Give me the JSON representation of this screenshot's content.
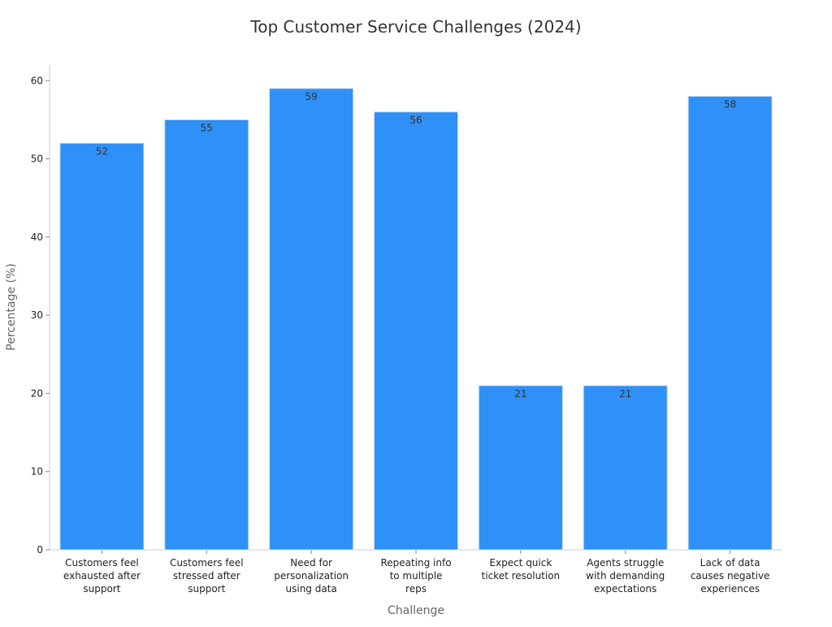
{
  "chart_data": {
    "type": "bar",
    "title": "Top Customer Service Challenges (2024)",
    "xlabel": "Challenge",
    "ylabel": "Percentage (%)",
    "categories": [
      "Customers feel exhausted after support",
      "Customers feel stressed after support",
      "Need for personalization using data",
      "Repeating info to multiple reps",
      "Expect quick ticket resolution",
      "Agents struggle with demanding expectations",
      "Lack of data causes negative experiences"
    ],
    "category_lines": [
      [
        "Customers feel",
        "exhausted after",
        "support"
      ],
      [
        "Customers feel",
        "stressed after",
        "support"
      ],
      [
        "Need for",
        "personalization",
        "using data"
      ],
      [
        "Repeating info",
        "to multiple",
        "reps"
      ],
      [
        "Expect quick",
        "ticket resolution"
      ],
      [
        "Agents struggle",
        "with demanding",
        "expectations"
      ],
      [
        "Lack of data",
        "causes negative",
        "experiences"
      ]
    ],
    "values": [
      52,
      55,
      59,
      56,
      21,
      21,
      58
    ],
    "ylim": [
      0,
      62
    ],
    "yticks": [
      0,
      10,
      20,
      30,
      40,
      50,
      60
    ],
    "grid": false,
    "legend": "none",
    "bar_color": "#2f90f7",
    "bar_edge_color": "#d0e2f5",
    "axis_color": "#cccccc"
  }
}
